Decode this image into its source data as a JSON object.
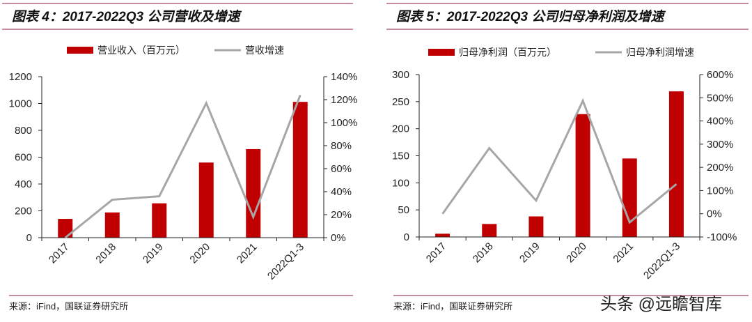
{
  "watermark": "头条 @远瞻智库",
  "colors": {
    "bar": "#C00000",
    "line": "#A6A6A6",
    "rule": "#8B1A3A"
  },
  "chart_data": [
    {
      "type": "bar",
      "title": "图表 4：2017-2022Q3 公司营收及增速",
      "categories": [
        "2017",
        "2018",
        "2019",
        "2020",
        "2021",
        "2022Q1-3"
      ],
      "series": [
        {
          "name": "营业收入（百万元）",
          "type": "bar",
          "axis": "left",
          "values": [
            140,
            188,
            256,
            560,
            660,
            1012
          ]
        },
        {
          "name": "营收增速",
          "type": "line",
          "axis": "right",
          "values": [
            0,
            33,
            36,
            117,
            18,
            124
          ]
        }
      ],
      "ylim": [
        0,
        1200
      ],
      "yticks": [
        "0",
        "200",
        "400",
        "600",
        "800",
        "1000",
        "1200"
      ],
      "y2lim": [
        0,
        140
      ],
      "y2ticks": [
        "0%",
        "20%",
        "40%",
        "60%",
        "80%",
        "100%",
        "120%",
        "140%"
      ],
      "legend": "top",
      "source": "来源：iFind，国联证券研究所"
    },
    {
      "type": "bar",
      "title": "图表 5：2017-2022Q3 公司归母净利润及增速",
      "categories": [
        "2017",
        "2018",
        "2019",
        "2020",
        "2021",
        "2022Q1-3"
      ],
      "series": [
        {
          "name": "归母净利润（百万元）",
          "type": "bar",
          "axis": "left",
          "values": [
            6,
            24,
            38,
            227,
            145,
            269
          ]
        },
        {
          "name": "归母净利润增速",
          "type": "line",
          "axis": "right",
          "values": [
            0,
            283,
            57,
            487,
            -37,
            128
          ]
        }
      ],
      "ylim": [
        0,
        300
      ],
      "yticks": [
        "0",
        "50",
        "100",
        "150",
        "200",
        "250",
        "300"
      ],
      "y2lim": [
        -100,
        600
      ],
      "y2ticks": [
        "-100%",
        "0%",
        "100%",
        "200%",
        "300%",
        "400%",
        "500%",
        "600%"
      ],
      "legend": "top",
      "source": "来源：iFind，国联证券研究所"
    }
  ]
}
